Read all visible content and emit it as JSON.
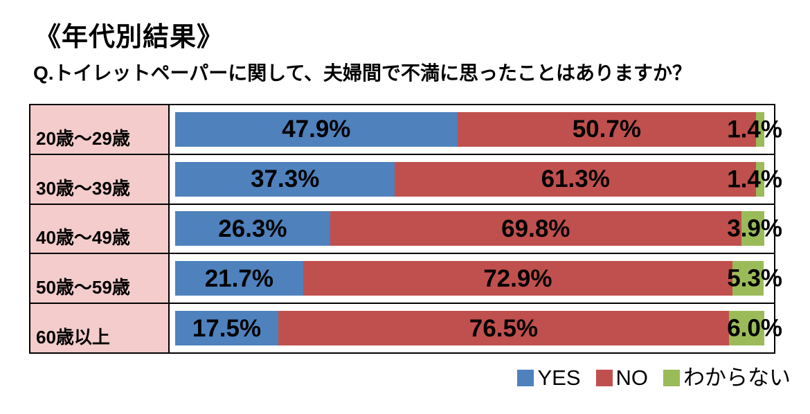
{
  "page": {
    "title": "《年代別結果》",
    "question": "Q.トイレットペーパーに関して、夫婦間で不満に思ったことはありますか？"
  },
  "colors": {
    "yes": "#4F81BD",
    "no": "#C0504D",
    "unknown": "#9BBB59",
    "row_label_bg": "#F4CCCC",
    "border": "#000000"
  },
  "chart_data": {
    "type": "bar",
    "orientation": "horizontal",
    "stacked": true,
    "title": "《年代別結果》",
    "subtitle": "Q.トイレットペーパーに関して、夫婦間で不満に思ったことはありますか？",
    "categories": [
      "20歳～29歳",
      "30歳～39歳",
      "40歳～49歳",
      "50歳～59歳",
      "60歳以上"
    ],
    "series": [
      {
        "name": "YES",
        "color": "#4F81BD",
        "values": [
          47.9,
          37.3,
          26.3,
          21.7,
          17.5
        ]
      },
      {
        "name": "NO",
        "color": "#C0504D",
        "values": [
          50.7,
          61.3,
          69.8,
          72.9,
          76.5
        ]
      },
      {
        "name": "わからない",
        "color": "#9BBB59",
        "values": [
          1.4,
          1.4,
          3.9,
          5.3,
          6.0
        ]
      }
    ],
    "value_suffix": "%",
    "xlim": [
      0,
      100
    ],
    "grid": false,
    "legend_position": "bottom-right"
  },
  "rows": [
    {
      "label": "20歳～29歳",
      "yes": "47.9%",
      "no": "50.7%",
      "unknown": "1.4%"
    },
    {
      "label": "30歳～39歳",
      "yes": "37.3%",
      "no": "61.3%",
      "unknown": "1.4%"
    },
    {
      "label": "40歳～49歳",
      "yes": "26.3%",
      "no": "69.8%",
      "unknown": "3.9%"
    },
    {
      "label": "50歳～59歳",
      "yes": "21.7%",
      "no": "72.9%",
      "unknown": "5.3%"
    },
    {
      "label": "60歳以上",
      "yes": "17.5%",
      "no": "76.5%",
      "unknown": "6.0%"
    }
  ],
  "legend": [
    {
      "label": "YES",
      "color": "#4F81BD"
    },
    {
      "label": "NO",
      "color": "#C0504D"
    },
    {
      "label": "わからない",
      "color": "#9BBB59"
    }
  ]
}
